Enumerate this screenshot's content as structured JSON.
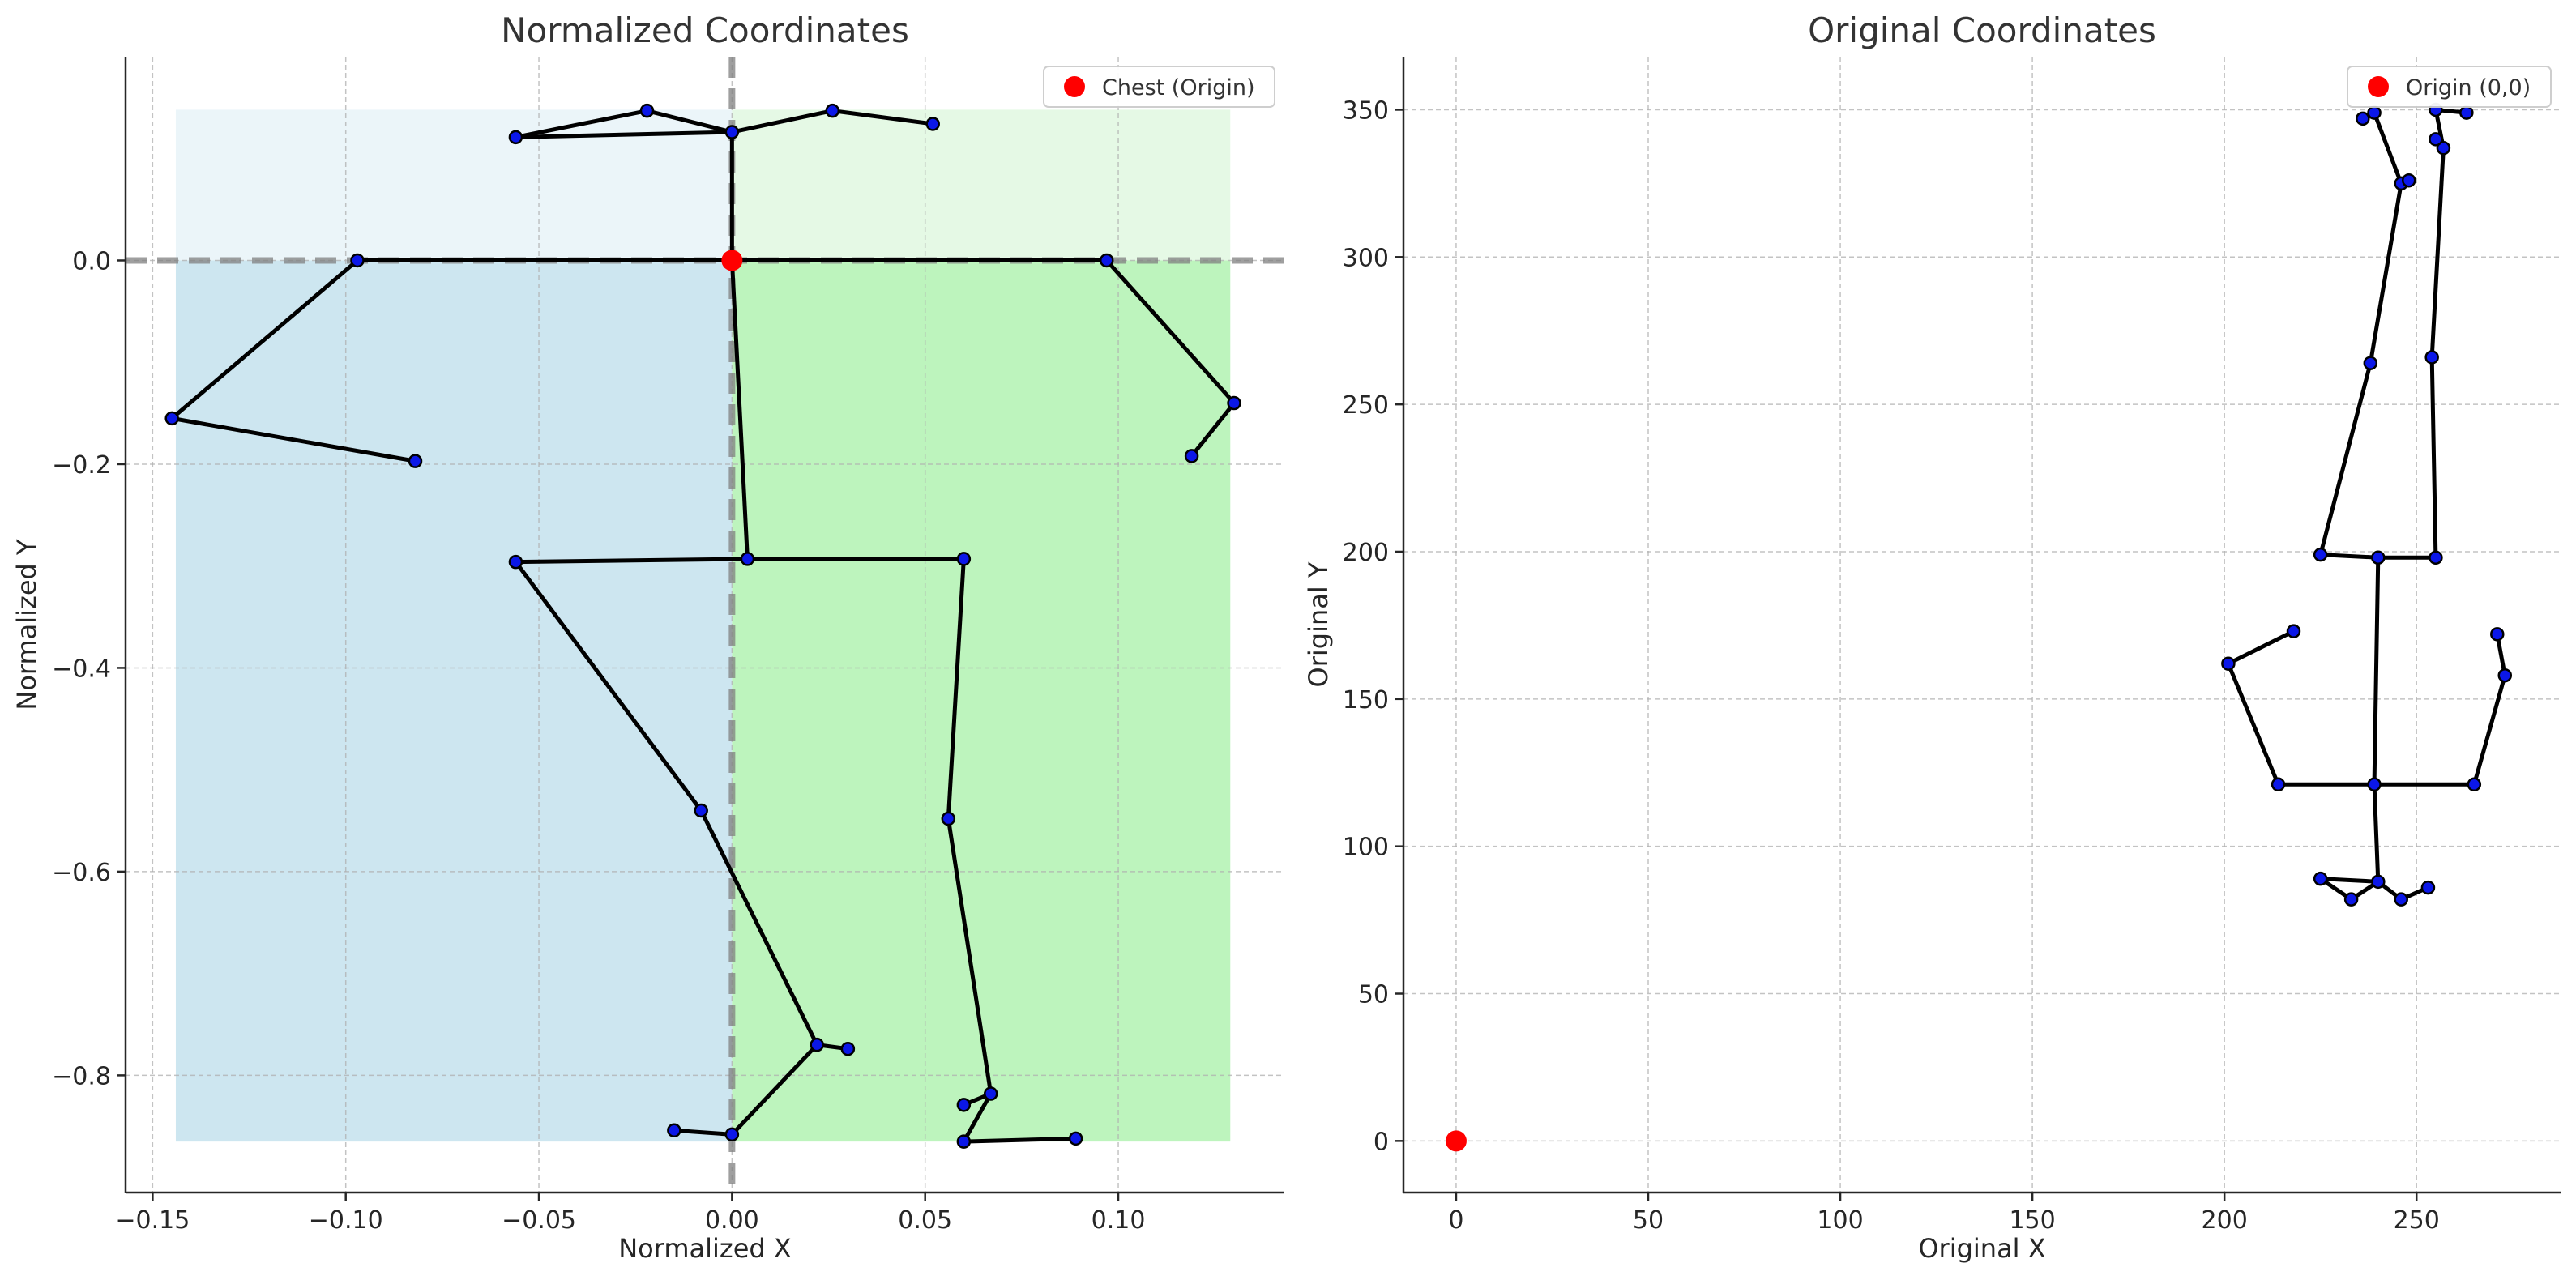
{
  "chart_data": [
    {
      "type": "scatter",
      "title": "Normalized Coordinates",
      "xlabel": "Normalized X",
      "ylabel": "Normalized Y",
      "xlim": [
        -0.157,
        0.143
      ],
      "ylim": [
        -0.915,
        0.2
      ],
      "xticks": [
        -0.15,
        -0.1,
        -0.05,
        0.0,
        0.05,
        0.1
      ],
      "xtick_labels": [
        "−0.15",
        "−0.10",
        "−0.05",
        "0.00",
        "0.05",
        "0.10"
      ],
      "yticks": [
        -0.8,
        -0.6,
        -0.4,
        -0.2,
        0.0
      ],
      "ytick_labels": [
        "−0.8",
        "−0.6",
        "−0.4",
        "−0.2",
        "0.0"
      ],
      "grid": true,
      "legend_position": "top-right",
      "legend": [
        "Chest (Origin)"
      ],
      "reference_lines": {
        "x": 0,
        "y": 0
      },
      "shaded_regions": [
        {
          "x": [
            -0.144,
            0
          ],
          "y": [
            -0.865,
            0
          ],
          "color": "#cde6f0"
        },
        {
          "x": [
            0,
            0.129
          ],
          "y": [
            -0.865,
            0
          ],
          "color": "#bdf4bd"
        },
        {
          "x": [
            -0.144,
            0
          ],
          "y": [
            0,
            0.148
          ],
          "color": "#ebf5f9"
        },
        {
          "x": [
            0,
            0.129
          ],
          "y": [
            0,
            0.148
          ],
          "color": "#e5f9e5"
        }
      ],
      "origin_point": [
        0,
        0
      ],
      "joints": [
        [
          0.0,
          0.0
        ],
        [
          0.0,
          0.126
        ],
        [
          -0.056,
          0.121
        ],
        [
          -0.022,
          0.147
        ],
        [
          0.026,
          0.147
        ],
        [
          0.052,
          0.134
        ],
        [
          -0.097,
          0.0
        ],
        [
          -0.145,
          -0.155
        ],
        [
          -0.082,
          -0.197
        ],
        [
          0.097,
          0.0
        ],
        [
          0.13,
          -0.14
        ],
        [
          0.119,
          -0.192
        ],
        [
          0.004,
          -0.293
        ],
        [
          -0.056,
          -0.296
        ],
        [
          -0.008,
          -0.54
        ],
        [
          0.022,
          -0.77
        ],
        [
          0.0,
          -0.858
        ],
        [
          -0.015,
          -0.854
        ],
        [
          0.03,
          -0.774
        ],
        [
          0.06,
          -0.293
        ],
        [
          0.056,
          -0.548
        ],
        [
          0.067,
          -0.818
        ],
        [
          0.06,
          -0.865
        ],
        [
          0.089,
          -0.862
        ],
        [
          0.06,
          -0.829
        ]
      ],
      "bones": [
        [
          0,
          1
        ],
        [
          1,
          2
        ],
        [
          2,
          3
        ],
        [
          3,
          1
        ],
        [
          1,
          4
        ],
        [
          4,
          5
        ],
        [
          0,
          6
        ],
        [
          6,
          7
        ],
        [
          7,
          8
        ],
        [
          0,
          9
        ],
        [
          9,
          10
        ],
        [
          10,
          11
        ],
        [
          0,
          12
        ],
        [
          12,
          13
        ],
        [
          13,
          14
        ],
        [
          14,
          15
        ],
        [
          15,
          16
        ],
        [
          16,
          17
        ],
        [
          15,
          18
        ],
        [
          12,
          19
        ],
        [
          19,
          20
        ],
        [
          20,
          21
        ],
        [
          21,
          22
        ],
        [
          22,
          23
        ],
        [
          21,
          24
        ]
      ]
    },
    {
      "type": "scatter",
      "title": "Original Coordinates",
      "xlabel": "Original X",
      "ylabel": "Original Y",
      "xlim": [
        -13.7,
        287.5
      ],
      "ylim": [
        -17.5,
        368
      ],
      "xticks": [
        0,
        50,
        100,
        150,
        200,
        250
      ],
      "xtick_labels": [
        "0",
        "50",
        "100",
        "150",
        "200",
        "250"
      ],
      "yticks": [
        0,
        50,
        100,
        150,
        200,
        250,
        300,
        350
      ],
      "ytick_labels": [
        "0",
        "50",
        "100",
        "150",
        "200",
        "250",
        "300",
        "350"
      ],
      "grid": true,
      "legend_position": "top-right",
      "legend": [
        "Origin (0,0)"
      ],
      "origin_point": [
        0,
        0
      ],
      "joints": [
        [
          239,
          121
        ],
        [
          240,
          88
        ],
        [
          225,
          89
        ],
        [
          233,
          82
        ],
        [
          246,
          82
        ],
        [
          253,
          86
        ],
        [
          214,
          121
        ],
        [
          201,
          162
        ],
        [
          218,
          173
        ],
        [
          265,
          121
        ],
        [
          273,
          158
        ],
        [
          271,
          172
        ],
        [
          240,
          198
        ],
        [
          225,
          199
        ],
        [
          238,
          264
        ],
        [
          246,
          325
        ],
        [
          239,
          349
        ],
        [
          236,
          347
        ],
        [
          248,
          326
        ],
        [
          255,
          198
        ],
        [
          254,
          266
        ],
        [
          257,
          337
        ],
        [
          255,
          350
        ],
        [
          263,
          349
        ],
        [
          255,
          340
        ]
      ],
      "bones": [
        [
          0,
          1
        ],
        [
          1,
          2
        ],
        [
          2,
          3
        ],
        [
          3,
          1
        ],
        [
          1,
          4
        ],
        [
          4,
          5
        ],
        [
          0,
          6
        ],
        [
          6,
          7
        ],
        [
          7,
          8
        ],
        [
          0,
          9
        ],
        [
          9,
          10
        ],
        [
          10,
          11
        ],
        [
          0,
          12
        ],
        [
          12,
          13
        ],
        [
          13,
          14
        ],
        [
          14,
          15
        ],
        [
          15,
          16
        ],
        [
          16,
          17
        ],
        [
          15,
          18
        ],
        [
          12,
          19
        ],
        [
          19,
          20
        ],
        [
          20,
          21
        ],
        [
          21,
          22
        ],
        [
          22,
          23
        ],
        [
          21,
          24
        ]
      ]
    }
  ]
}
